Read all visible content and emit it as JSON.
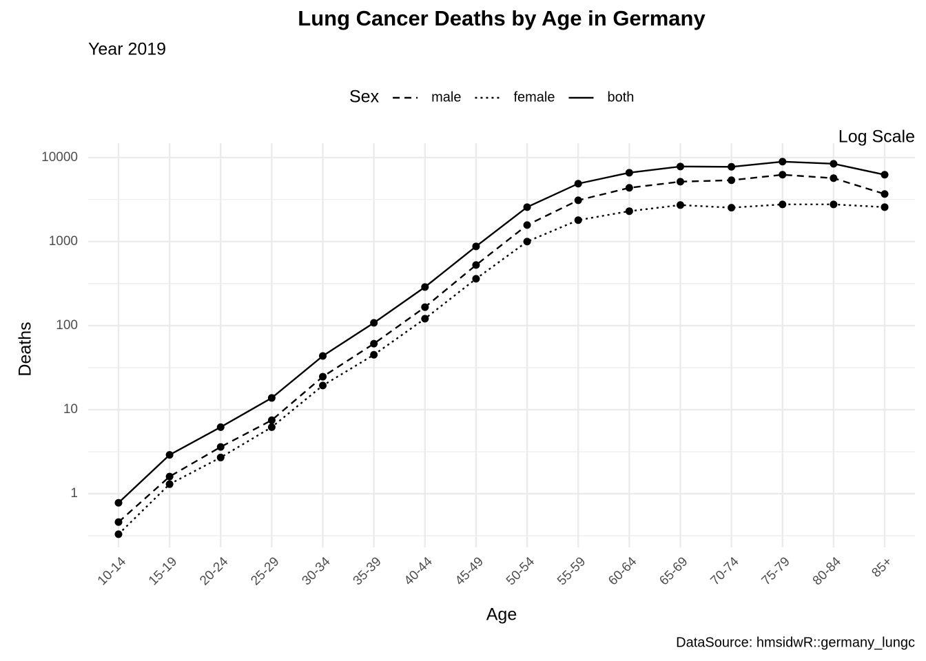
{
  "chart_data": {
    "type": "line",
    "title": "Lung Cancer Deaths by Age in Germany",
    "subtitle": "Year 2019",
    "annotation": "Log Scale",
    "caption": "DataSource: hmsidwR::germany_lungc",
    "x_label": "Age",
    "y_label": "Deaths",
    "legend_title": "Sex",
    "legend_position": "top",
    "categories": [
      "10-14",
      "15-19",
      "20-24",
      "25-29",
      "30-34",
      "35-39",
      "40-44",
      "45-49",
      "50-54",
      "55-59",
      "60-64",
      "65-69",
      "70-74",
      "75-79",
      "80-84",
      "85+"
    ],
    "series": [
      {
        "name": "male",
        "color": "#000000",
        "linetype": "dashed",
        "values": [
          0.46,
          1.6,
          3.6,
          7.5,
          24.7,
          61,
          166,
          526,
          1573,
          3100,
          4360,
          5160,
          5370,
          6240,
          5680,
          3680
        ]
      },
      {
        "name": "female",
        "color": "#000000",
        "linetype": "dotted",
        "values": [
          0.33,
          1.3,
          2.7,
          6.2,
          19.4,
          45,
          121,
          361,
          1000,
          1800,
          2300,
          2720,
          2530,
          2770,
          2770,
          2570
        ]
      },
      {
        "name": "both",
        "color": "#000000",
        "linetype": "solid",
        "values": [
          0.78,
          2.9,
          6.2,
          13.8,
          43.6,
          108,
          288,
          877,
          2570,
          4890,
          6600,
          7820,
          7750,
          8930,
          8430,
          6240
        ]
      }
    ],
    "log_y": true,
    "ylim": [
      0.23,
      14800
    ],
    "yticks": [
      1,
      10,
      100,
      1000,
      10000
    ],
    "grid": true,
    "minor_grid": true
  }
}
